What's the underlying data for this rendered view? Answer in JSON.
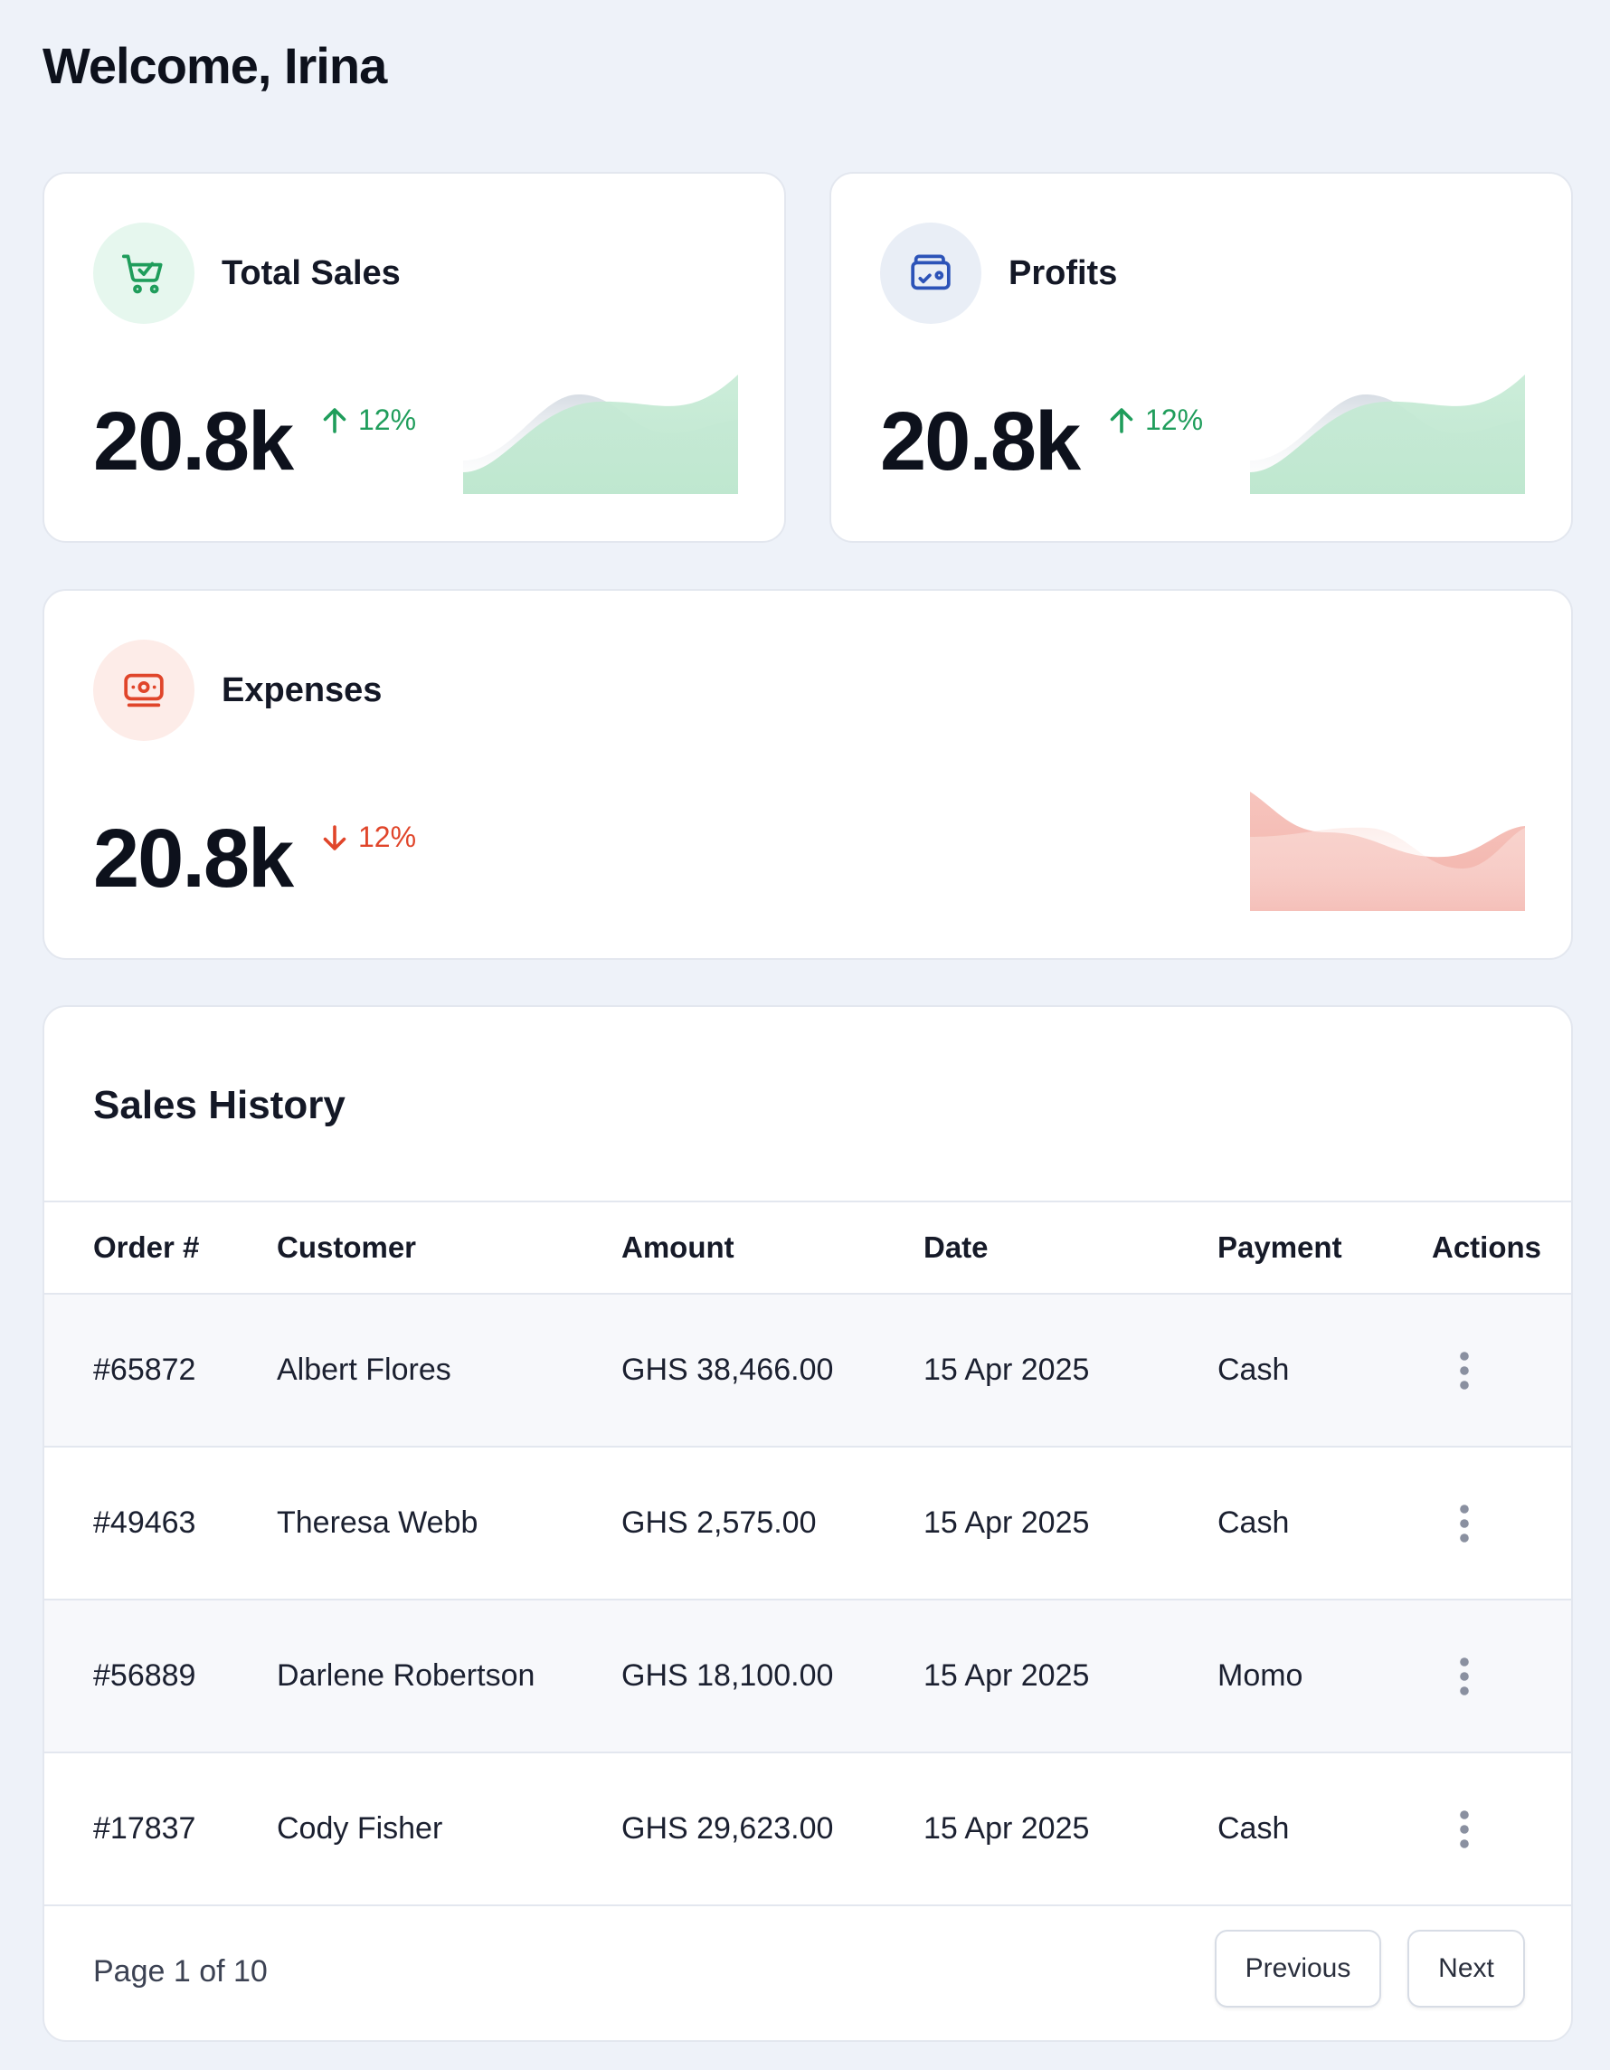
{
  "header": {
    "title": "Welcome, Irina"
  },
  "stats": [
    {
      "title": "Total Sales",
      "value": "20.8k",
      "change": "12%",
      "direction": "up",
      "icon": "shopping-cart-icon",
      "color": "#1f9d5b"
    },
    {
      "title": "Profits",
      "value": "20.8k",
      "change": "12%",
      "direction": "up",
      "icon": "wallet-icon",
      "color": "#1f9d5b"
    },
    {
      "title": "Expenses",
      "value": "20.8k",
      "change": "12%",
      "direction": "down",
      "icon": "money-icon",
      "color": "#e0452a"
    }
  ],
  "sales_history": {
    "title": "Sales History",
    "columns": [
      "Order #",
      "Customer",
      "Amount",
      "Date",
      "Payment",
      "Actions"
    ],
    "rows": [
      {
        "order": "#65872",
        "customer": "Albert Flores",
        "amount": "GHS 38,466.00",
        "date": "15 Apr 2025",
        "payment": "Cash"
      },
      {
        "order": "#49463",
        "customer": "Theresa Webb",
        "amount": "GHS 2,575.00",
        "date": "15 Apr 2025",
        "payment": "Cash"
      },
      {
        "order": "#56889",
        "customer": "Darlene Robertson",
        "amount": "GHS 18,100.00",
        "date": "15 Apr 2025",
        "payment": "Momo"
      },
      {
        "order": "#17837",
        "customer": "Cody Fisher",
        "amount": "GHS 29,623.00",
        "date": "15 Apr 2025",
        "payment": "Cash"
      }
    ],
    "pagination": {
      "info": "Page 1 of 10",
      "previous": "Previous",
      "next": "Next"
    }
  },
  "colors": {
    "background": "#eef2f9",
    "positive": "#1f9d5b",
    "negative": "#e0452a",
    "positive_fill": "#bfe8d0",
    "negative_fill": "#f4b4ac"
  }
}
